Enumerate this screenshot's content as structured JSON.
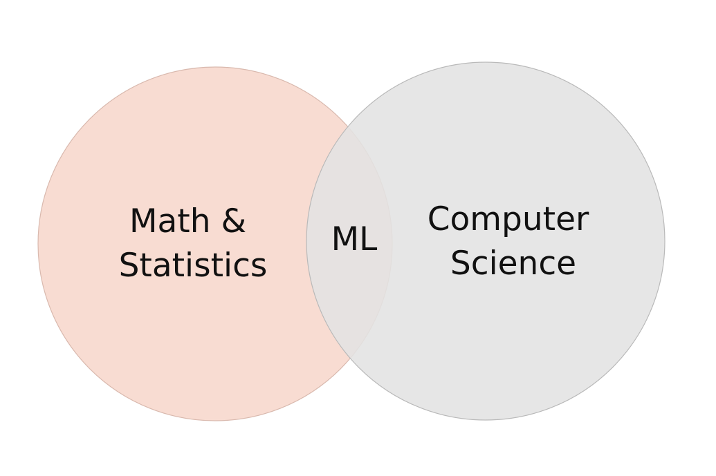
{
  "diagram": {
    "type": "venn",
    "sets": [
      {
        "id": "left",
        "label_lines": [
          "Math &",
          "Statistics"
        ],
        "fill": "#f8dcd2"
      },
      {
        "id": "right",
        "label_lines": [
          "Computer",
          "Science"
        ],
        "fill": "#e3e3e3"
      }
    ],
    "intersection": {
      "label": "ML",
      "fill": "#e9d5cf"
    }
  }
}
